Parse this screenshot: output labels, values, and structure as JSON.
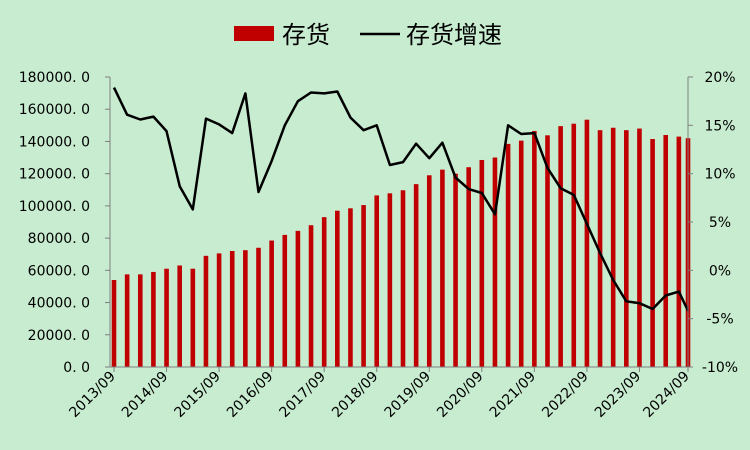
{
  "chart_data": {
    "type": "bar+line",
    "legend": {
      "position": "top",
      "series": [
        {
          "name": "存货",
          "kind": "bar",
          "color": "#c00000"
        },
        {
          "name": "存货增速",
          "kind": "line",
          "color": "#000000"
        }
      ]
    },
    "grid": false,
    "left_axis": {
      "range": [
        0,
        180000
      ],
      "ticks": [
        "0. 0",
        "20000. 0",
        "40000. 0",
        "60000. 0",
        "80000. 0",
        "100000. 0",
        "120000. 0",
        "140000. 0",
        "160000. 0",
        "180000. 0"
      ]
    },
    "right_axis": {
      "range": [
        -10,
        20
      ],
      "unit": "%",
      "ticks": [
        "-10%",
        "-5%",
        "0%",
        "5%",
        "10%",
        "15%",
        "20%"
      ]
    },
    "x_tick_labels": [
      "2013/09",
      "2014/09",
      "2015/09",
      "2016/09",
      "2017/09",
      "2018/09",
      "2019/09",
      "2020/09",
      "2021/09",
      "2022/09",
      "2023/09",
      "2024/09"
    ],
    "categories": [
      "2013/09",
      "2013/12",
      "2014/03",
      "2014/06",
      "2014/09",
      "2014/12",
      "2015/03",
      "2015/06",
      "2015/09",
      "2015/12",
      "2016/03",
      "2016/06",
      "2016/09",
      "2016/12",
      "2017/03",
      "2017/06",
      "2017/09",
      "2017/12",
      "2018/03",
      "2018/06",
      "2018/09",
      "2018/12",
      "2019/03",
      "2019/06",
      "2019/09",
      "2019/12",
      "2020/03",
      "2020/06",
      "2020/09",
      "2020/12",
      "2021/03",
      "2021/06",
      "2021/09",
      "2021/12",
      "2022/03",
      "2022/06",
      "2022/09",
      "2022/12",
      "2023/03",
      "2023/06",
      "2023/09",
      "2023/12",
      "2024/03",
      "2024/06",
      "2024/09"
    ],
    "series": [
      {
        "name": "存货",
        "type": "bar",
        "axis": "left",
        "values": [
          54000,
          57500,
          57500,
          59000,
          61000,
          63000,
          61000,
          69000,
          70500,
          72000,
          72500,
          74000,
          78500,
          82000,
          84500,
          88000,
          93000,
          97000,
          98500,
          100500,
          106500,
          107800,
          109700,
          113500,
          119000,
          122500,
          120000,
          124000,
          128500,
          130000,
          138500,
          140500,
          146500,
          143800,
          149500,
          151000,
          153500,
          147000,
          148500,
          147000,
          148000,
          141500,
          144000,
          143000,
          142000
        ]
      },
      {
        "name": "存货增速",
        "type": "line",
        "axis": "right",
        "values": [
          18.9,
          16.1,
          15.6,
          15.9,
          14.4,
          8.7,
          6.3,
          15.7,
          15.1,
          14.2,
          18.3,
          8.1,
          11.3,
          15.0,
          17.5,
          18.4,
          18.3,
          18.5,
          15.8,
          14.5,
          15.0,
          10.9,
          11.2,
          13.1,
          11.6,
          13.2,
          9.6,
          8.4,
          8.0,
          5.8,
          15.0,
          14.1,
          14.2,
          10.6,
          8.5,
          7.8,
          4.8,
          1.8,
          -1.0,
          -3.2,
          -3.4,
          -4.0,
          -2.6,
          -2.2,
          -4.2
        ]
      }
    ]
  }
}
